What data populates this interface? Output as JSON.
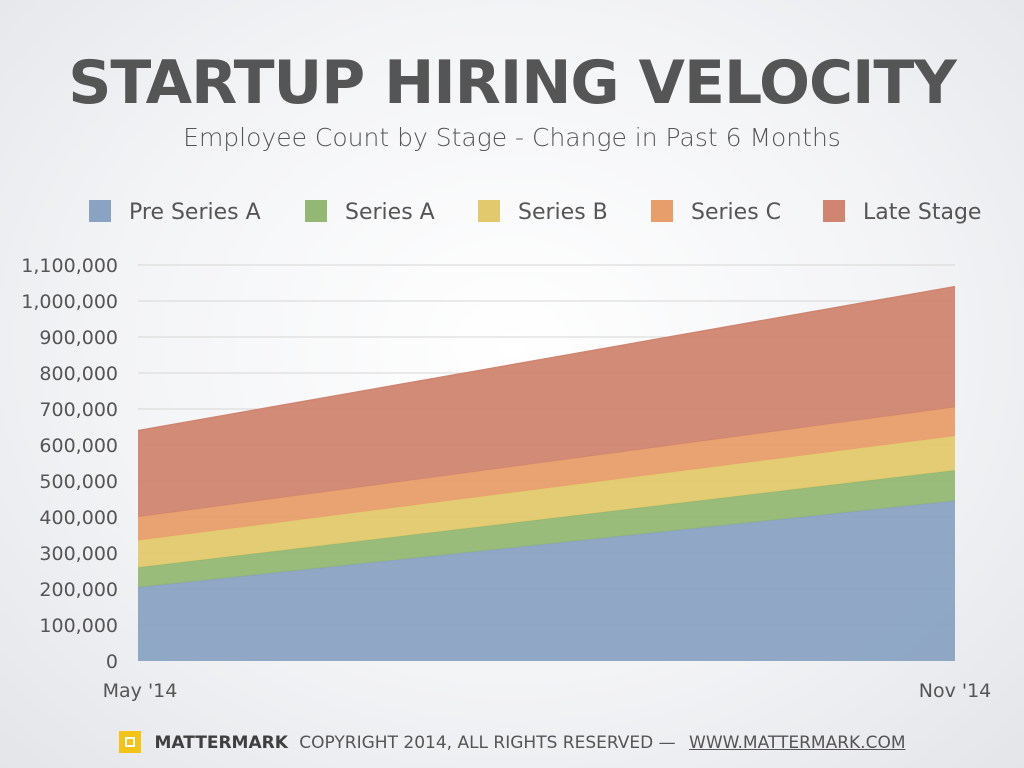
{
  "chart_data": {
    "type": "area",
    "stacked": true,
    "title": "STARTUP HIRING VELOCITY",
    "subtitle": "Employee Count by Stage - Change in Past 6 Months",
    "x": [
      "May '14",
      "Nov '14"
    ],
    "y_ticks": [
      "0",
      "100,000",
      "200,000",
      "300,000",
      "400,000",
      "500,000",
      "600,000",
      "700,000",
      "800,000",
      "900,000",
      "1,000,000",
      "1,100,000"
    ],
    "ylim": [
      0,
      1100000
    ],
    "grid": true,
    "legend_position": "top",
    "series": [
      {
        "name": "Pre Series A",
        "color": "#8aa3c2",
        "values": [
          205000,
          445000
        ]
      },
      {
        "name": "Series A",
        "color": "#94b873",
        "values": [
          55000,
          85000
        ]
      },
      {
        "name": "Series B",
        "color": "#e3c96e",
        "values": [
          75000,
          95000
        ]
      },
      {
        "name": "Series C",
        "color": "#e89e6b",
        "values": [
          65000,
          80000
        ]
      },
      {
        "name": "Late Stage",
        "color": "#cf8570",
        "values": [
          240000,
          335000
        ]
      }
    ]
  },
  "footer": {
    "brand": "MATTERMARK",
    "copyright": "COPYRIGHT 2014, ALL RIGHTS RESERVED —",
    "url": "WWW.MATTERMARK.COM"
  }
}
